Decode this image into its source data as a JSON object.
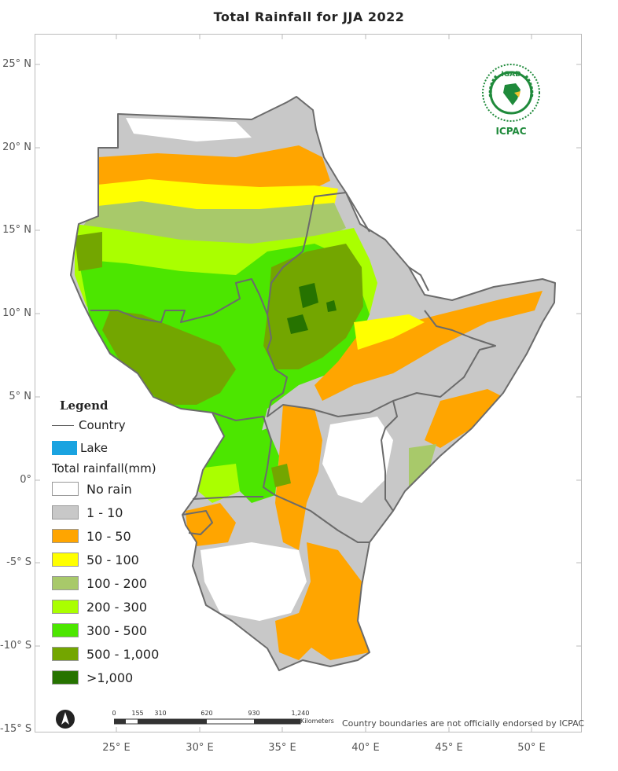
{
  "title": "Total  Rainfall for JJA 2022",
  "latitudes": [
    {
      "label": "25° N",
      "value": 25
    },
    {
      "label": "20° N",
      "value": 20
    },
    {
      "label": "15° N",
      "value": 15
    },
    {
      "label": "10° N",
      "value": 10
    },
    {
      "label": "5° N",
      "value": 5
    },
    {
      "label": "0°",
      "value": 0
    },
    {
      "label": "-5° S",
      "value": -5
    },
    {
      "label": "-10° S",
      "value": -10
    },
    {
      "label": "-15° S",
      "value": -15
    }
  ],
  "longitudes": [
    {
      "label": "25° E",
      "value": 25
    },
    {
      "label": "30° E",
      "value": 30
    },
    {
      "label": "35° E",
      "value": 35
    },
    {
      "label": "40° E",
      "value": 40
    },
    {
      "label": "45° E",
      "value": 45
    },
    {
      "label": "50° E",
      "value": 50
    }
  ],
  "legend": {
    "title": "Legend",
    "country_label": "Country",
    "lake_label": "Lake",
    "lake_color": "#1aa3e0",
    "rainfall_title": "Total rainfall(mm)",
    "classes": [
      {
        "label": "No rain",
        "color": "#ffffff"
      },
      {
        "label": "1 - 10",
        "color": "#c8c8c8"
      },
      {
        "label": "10 - 50",
        "color": "#ffa500"
      },
      {
        "label": "50 - 100",
        "color": "#ffff00"
      },
      {
        "label": "100 - 200",
        "color": "#a8c96a"
      },
      {
        "label": "200 - 300",
        "color": "#aaff00"
      },
      {
        "label": "300 - 500",
        "color": "#4ce600"
      },
      {
        "label": "500 - 1,000",
        "color": "#73a600"
      },
      {
        "label": ">1,000",
        "color": "#267300"
      }
    ]
  },
  "logo": {
    "top_text": "IGAD",
    "bottom_text": "ICPAC"
  },
  "scale": {
    "ticks": [
      "0",
      "155",
      "310",
      "620",
      "930",
      "1,240"
    ],
    "unit": "Kilometers"
  },
  "disclaimer": "Country boundaries are not officially endorsed by ICPAC",
  "colors": {
    "border": "#6b6b6b",
    "frame": "#bbbbbb",
    "logo_green": "#1f8a3b"
  }
}
